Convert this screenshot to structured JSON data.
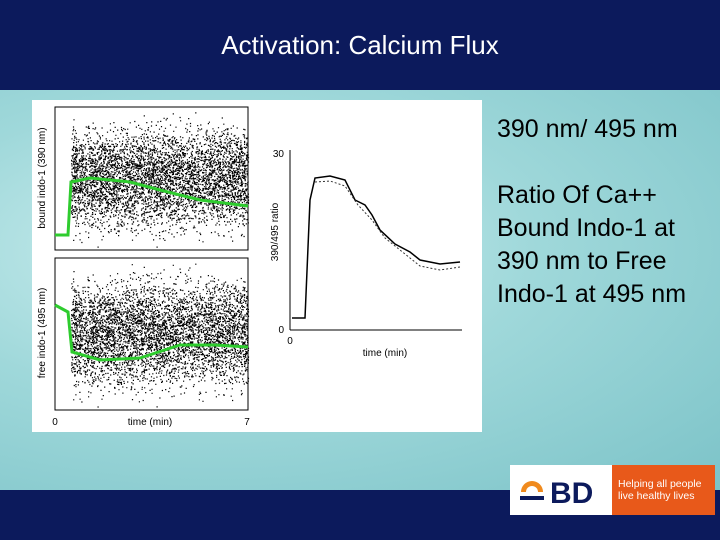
{
  "header": {
    "title": "Activation: Calcium Flux"
  },
  "figure": {
    "left_plot": {
      "y_label_top": "bound indo-1 (390 nm)",
      "y_label_bottom": "free indo-1 (495 nm)",
      "x_label": "time (min)",
      "x_ticks": [
        "0",
        "7"
      ]
    },
    "right_plot": {
      "y_label": "390/495 ratio",
      "y_ticks": [
        "30",
        "0"
      ],
      "x_label": "time (min)",
      "x_ticks": [
        "0"
      ]
    }
  },
  "body": {
    "paragraphs": [
      "390 nm/ 495 nm",
      "Ratio Of  Ca++ Bound Indo-1 at 390 nm to Free Indo-1 at 495 nm"
    ]
  },
  "logo": {
    "brand": "BD",
    "tagline": "Helping all people live healthy lives"
  }
}
